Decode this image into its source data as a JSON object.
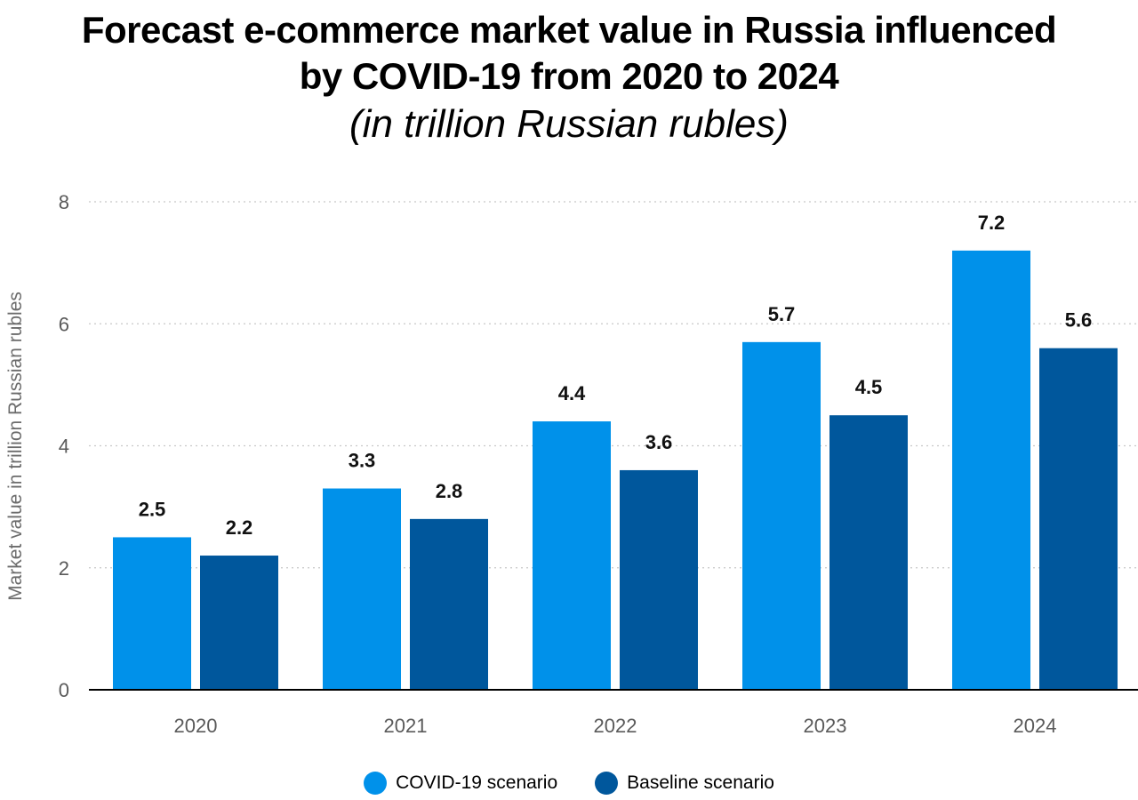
{
  "chart_data": {
    "type": "bar",
    "title": "Forecast e-commerce market value in Russia influenced by COVID-19 from 2020 to 2024",
    "subtitle": "(in trillion Russian rubles)",
    "xlabel": "",
    "ylabel": "Market value in trillion Russian rubles",
    "categories": [
      "2020",
      "2021",
      "2022",
      "2023",
      "2024"
    ],
    "series": [
      {
        "name": "COVID-19 scenario",
        "color": "#0091ea",
        "values": [
          2.5,
          3.3,
          4.4,
          5.7,
          7.2
        ],
        "labels": [
          "2.5",
          "3.3",
          "4.4",
          "5.7",
          "7.2"
        ]
      },
      {
        "name": "Baseline scenario",
        "color": "#00579c",
        "values": [
          2.2,
          2.8,
          3.6,
          4.5,
          5.6
        ],
        "labels": [
          "2.2",
          "2.8",
          "3.6",
          "4.5",
          "5.6"
        ]
      }
    ],
    "ylim": [
      0,
      8
    ],
    "yticks": [
      "0",
      "2",
      "4",
      "6",
      "8"
    ],
    "grid": true,
    "legend_position": "bottom-center"
  }
}
